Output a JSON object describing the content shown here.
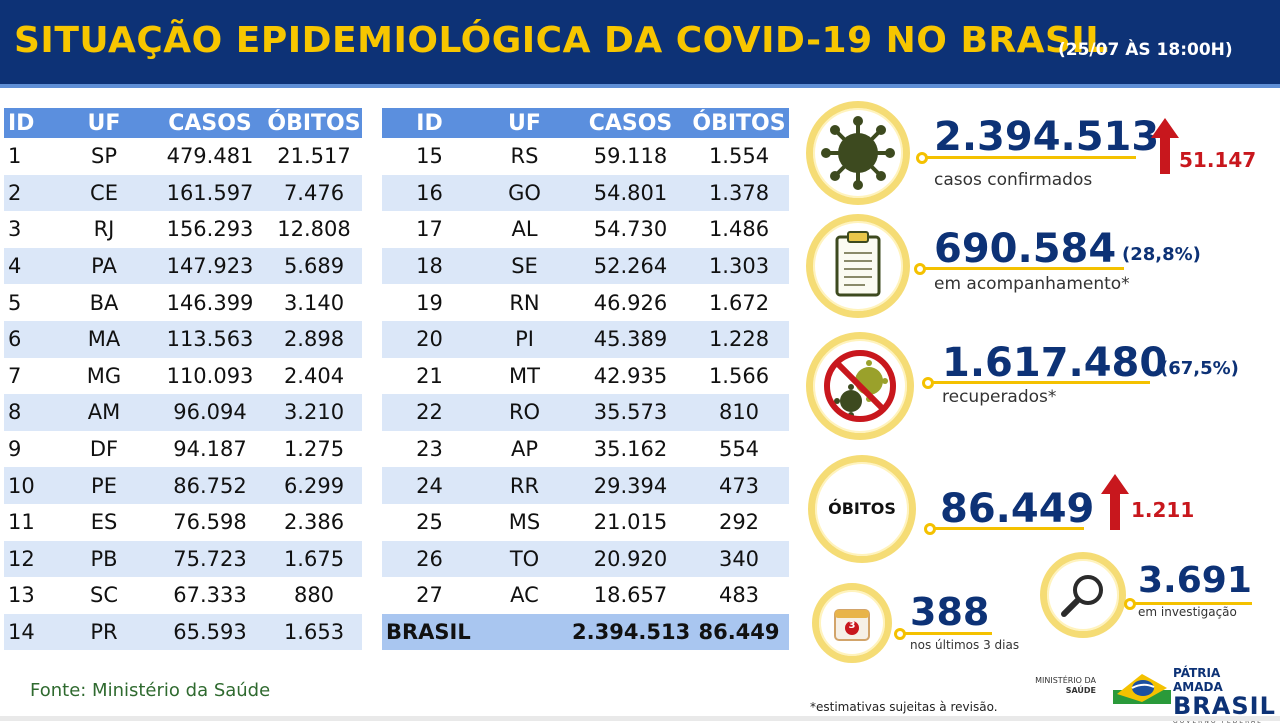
{
  "header": {
    "title": "SITUAÇÃO EPIDEMIOLÓGICA DA COVID-19 NO BRASIL",
    "date": "(25/07 ÀS 18:00H)"
  },
  "table_headers": {
    "id": "ID",
    "uf": "UF",
    "cases": "CASOS",
    "deaths": "ÓBITOS"
  },
  "rows": [
    [
      "1",
      "SP",
      "479.481",
      "21.517"
    ],
    [
      "2",
      "CE",
      "161.597",
      "7.476"
    ],
    [
      "3",
      "RJ",
      "156.293",
      "12.808"
    ],
    [
      "4",
      "PA",
      "147.923",
      "5.689"
    ],
    [
      "5",
      "BA",
      "146.399",
      "3.140"
    ],
    [
      "6",
      "MA",
      "113.563",
      "2.898"
    ],
    [
      "7",
      "MG",
      "110.093",
      "2.404"
    ],
    [
      "8",
      "AM",
      "96.094",
      "3.210"
    ],
    [
      "9",
      "DF",
      "94.187",
      "1.275"
    ],
    [
      "10",
      "PE",
      "86.752",
      "6.299"
    ],
    [
      "11",
      "ES",
      "76.598",
      "2.386"
    ],
    [
      "12",
      "PB",
      "75.723",
      "1.675"
    ],
    [
      "13",
      "SC",
      "67.333",
      "880"
    ],
    [
      "14",
      "PR",
      "65.593",
      "1.653"
    ],
    [
      "15",
      "RS",
      "59.118",
      "1.554"
    ],
    [
      "16",
      "GO",
      "54.801",
      "1.378"
    ],
    [
      "17",
      "AL",
      "54.730",
      "1.486"
    ],
    [
      "18",
      "SE",
      "52.264",
      "1.303"
    ],
    [
      "19",
      "RN",
      "46.926",
      "1.672"
    ],
    [
      "20",
      "PI",
      "45.389",
      "1.228"
    ],
    [
      "21",
      "MT",
      "42.935",
      "1.566"
    ],
    [
      "22",
      "RO",
      "35.573",
      "810"
    ],
    [
      "23",
      "AP",
      "35.162",
      "554"
    ],
    [
      "24",
      "RR",
      "29.394",
      "473"
    ],
    [
      "25",
      "MS",
      "21.015",
      "292"
    ],
    [
      "26",
      "TO",
      "20.920",
      "340"
    ],
    [
      "27",
      "AC",
      "18.657",
      "483"
    ]
  ],
  "total": {
    "label": "BRASIL",
    "cases": "2.394.513",
    "deaths": "86.449"
  },
  "summary": {
    "confirmed": {
      "value": "2.394.513",
      "label": "casos confirmados",
      "increase": "51.147",
      "icon": "virus-icon"
    },
    "monitoring": {
      "value": "690.584",
      "pct": "(28,8%)",
      "label": "em acompanhamento*",
      "icon": "clipboard-icon"
    },
    "recovered": {
      "value": "1.617.480",
      "pct": "(67,5%)",
      "label": "recuperados*",
      "icon": "no-virus-icon"
    },
    "deaths": {
      "badge": "ÓBITOS",
      "value": "86.449",
      "increase": "1.211"
    },
    "investigation": {
      "value": "3.691",
      "label": "em investigação",
      "icon": "magnifier-icon"
    },
    "recent": {
      "value": "388",
      "label": "nos últimos 3 dias",
      "icon": "calendar-icon",
      "calendar_number": "3"
    }
  },
  "footer": {
    "source": "Fonte: Ministério da Saúde",
    "note": "*estimativas sujeitas à revisão.",
    "ministry_line1": "MINISTÉRIO DA",
    "ministry_line2": "SAÚDE",
    "gov_line1": "PÁTRIA AMADA",
    "gov_line2": "BRASIL",
    "gov_line3": "GOVERNO FEDERAL"
  },
  "colors": {
    "navy": "#0d3276",
    "gold": "#f7c600",
    "red": "#c8171d",
    "header_blue": "#5b8fde",
    "row_blue": "#dbe7f8"
  }
}
